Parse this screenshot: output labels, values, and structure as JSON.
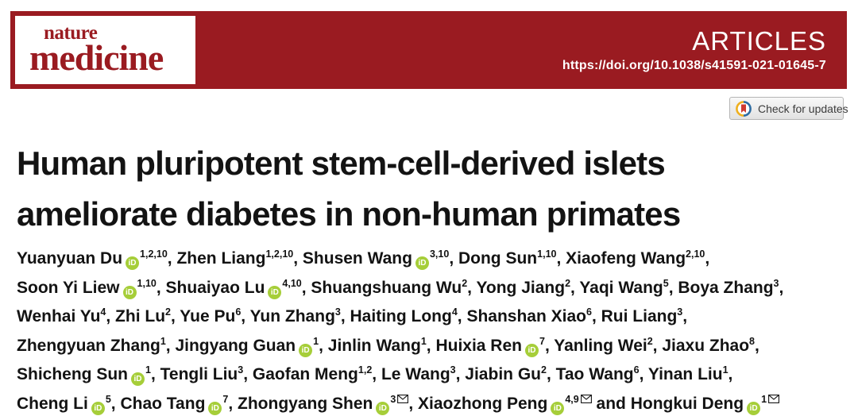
{
  "banner": {
    "color": "#9a1b21",
    "logo_line1": "nature",
    "logo_line2": "medicine",
    "section_label": "ARTICLES",
    "doi": "https://doi.org/10.1038/s41591-021-01645-7"
  },
  "crossmark": {
    "label": "Check for updates",
    "icon_colors": {
      "ring_blue": "#2d6ca2",
      "ring_yellow": "#efb01f",
      "bookmark_red": "#cf3a31"
    }
  },
  "title": {
    "line1": "Human pluripotent stem-cell-derived islets",
    "line2": "ameliorate diabetes in non-human primates"
  },
  "orcid": {
    "icon_text": "iD",
    "color": "#a6ce39"
  },
  "authors": {
    "lines": [
      [
        {
          "name": "Yuanyuan Du",
          "orcid": true,
          "sup": "1,2,10",
          "mail": false,
          "post": ", "
        },
        {
          "name": "Zhen Liang",
          "orcid": false,
          "sup": "1,2,10",
          "mail": false,
          "post": ", "
        },
        {
          "name": "Shusen Wang",
          "orcid": true,
          "sup": "3,10",
          "mail": false,
          "post": ", "
        },
        {
          "name": "Dong Sun",
          "orcid": false,
          "sup": "1,10",
          "mail": false,
          "post": ", "
        },
        {
          "name": "Xiaofeng Wang",
          "orcid": false,
          "sup": "2,10",
          "mail": false,
          "post": ","
        }
      ],
      [
        {
          "name": "Soon Yi Liew",
          "orcid": true,
          "sup": "1,10",
          "mail": false,
          "post": ", "
        },
        {
          "name": "Shuaiyao Lu",
          "orcid": true,
          "sup": "4,10",
          "mail": false,
          "post": ", "
        },
        {
          "name": "Shuangshuang Wu",
          "orcid": false,
          "sup": "2",
          "mail": false,
          "post": ", "
        },
        {
          "name": "Yong Jiang",
          "orcid": false,
          "sup": "2",
          "mail": false,
          "post": ", "
        },
        {
          "name": "Yaqi Wang",
          "orcid": false,
          "sup": "5",
          "mail": false,
          "post": ", "
        },
        {
          "name": "Boya Zhang",
          "orcid": false,
          "sup": "3",
          "mail": false,
          "post": ","
        }
      ],
      [
        {
          "name": "Wenhai Yu",
          "orcid": false,
          "sup": "4",
          "mail": false,
          "post": ", "
        },
        {
          "name": "Zhi Lu",
          "orcid": false,
          "sup": "2",
          "mail": false,
          "post": ", "
        },
        {
          "name": "Yue Pu",
          "orcid": false,
          "sup": "6",
          "mail": false,
          "post": ", "
        },
        {
          "name": "Yun Zhang",
          "orcid": false,
          "sup": "3",
          "mail": false,
          "post": ", "
        },
        {
          "name": "Haiting Long",
          "orcid": false,
          "sup": "4",
          "mail": false,
          "post": ", "
        },
        {
          "name": "Shanshan Xiao",
          "orcid": false,
          "sup": "6",
          "mail": false,
          "post": ", "
        },
        {
          "name": "Rui Liang",
          "orcid": false,
          "sup": "3",
          "mail": false,
          "post": ","
        }
      ],
      [
        {
          "name": "Zhengyuan Zhang",
          "orcid": false,
          "sup": "1",
          "mail": false,
          "post": ", "
        },
        {
          "name": "Jingyang Guan",
          "orcid": true,
          "sup": "1",
          "mail": false,
          "post": ", "
        },
        {
          "name": "Jinlin Wang",
          "orcid": false,
          "sup": "1",
          "mail": false,
          "post": ", "
        },
        {
          "name": "Huixia Ren",
          "orcid": true,
          "sup": "7",
          "mail": false,
          "post": ", "
        },
        {
          "name": "Yanling Wei",
          "orcid": false,
          "sup": "2",
          "mail": false,
          "post": ", "
        },
        {
          "name": "Jiaxu Zhao",
          "orcid": false,
          "sup": "8",
          "mail": false,
          "post": ","
        }
      ],
      [
        {
          "name": "Shicheng Sun",
          "orcid": true,
          "sup": "1",
          "mail": false,
          "post": ", "
        },
        {
          "name": "Tengli Liu",
          "orcid": false,
          "sup": "3",
          "mail": false,
          "post": ", "
        },
        {
          "name": "Gaofan Meng",
          "orcid": false,
          "sup": "1,2",
          "mail": false,
          "post": ", "
        },
        {
          "name": "Le Wang",
          "orcid": false,
          "sup": "3",
          "mail": false,
          "post": ", "
        },
        {
          "name": "Jiabin Gu",
          "orcid": false,
          "sup": "2",
          "mail": false,
          "post": ", "
        },
        {
          "name": "Tao Wang",
          "orcid": false,
          "sup": "6",
          "mail": false,
          "post": ", "
        },
        {
          "name": "Yinan Liu",
          "orcid": false,
          "sup": "1",
          "mail": false,
          "post": ","
        }
      ],
      [
        {
          "name": "Cheng Li",
          "orcid": true,
          "sup": "5",
          "mail": false,
          "post": ", "
        },
        {
          "name": "Chao Tang",
          "orcid": true,
          "sup": "7",
          "mail": false,
          "post": ", "
        },
        {
          "name": "Zhongyang Shen",
          "orcid": true,
          "sup": "3",
          "mail": true,
          "post": ", "
        },
        {
          "name": "Xiaozhong Peng",
          "orcid": true,
          "sup": "4,9",
          "mail": true,
          "post": " and "
        },
        {
          "name": "Hongkui Deng",
          "orcid": true,
          "sup": "1",
          "mail": true,
          "post": ""
        }
      ]
    ]
  }
}
